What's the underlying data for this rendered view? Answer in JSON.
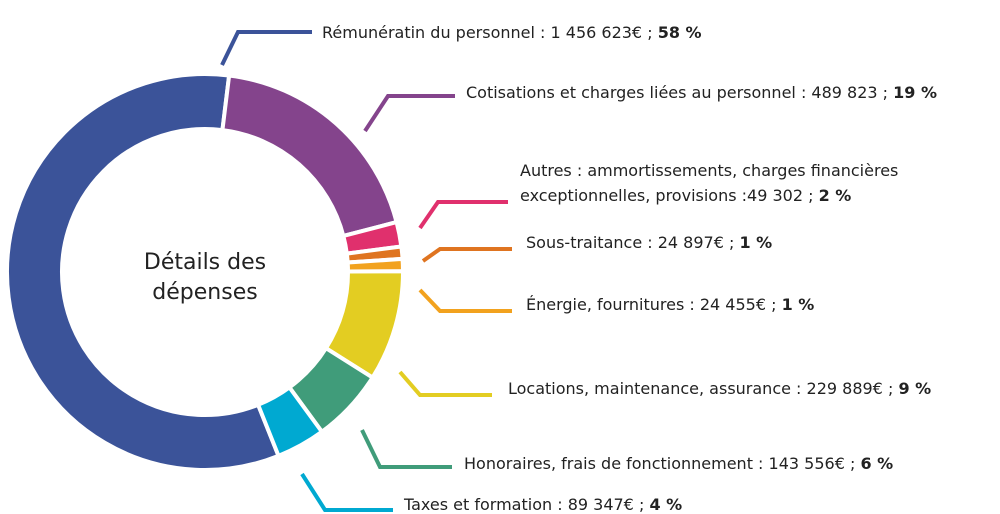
{
  "chart_data": {
    "type": "donut",
    "center_label": "Détails des dépenses",
    "categories": [
      "Rémunératin du personnel : 1 456 623€ ;",
      "Cotisations et charges liées au personnel : 489 823 ;",
      "Autres : ammortissements, charges financières exceptionnelles, provisions :49 302 ;",
      "Sous-traitance : 24 897€ ;",
      "Énergie, fournitures : 24 455€ ;",
      "Locations, maintenance, assurance : 229 889€ ;",
      "Honoraires, frais de fonctionnement : 143 556€ ;",
      "Taxes et formation : 89 347€ ;"
    ],
    "values": [
      58,
      19,
      2,
      1,
      1,
      9,
      6,
      4
    ],
    "value_labels": [
      "58 %",
      "19 %",
      "2 %",
      "1 %",
      "1 %",
      "9 %",
      "6 %",
      "4 %"
    ],
    "colors": [
      "#3b5399",
      "#84448c",
      "#e0306d",
      "#df7420",
      "#f2a21e",
      "#e3cd22",
      "#409c7a",
      "#00a9d1"
    ]
  }
}
